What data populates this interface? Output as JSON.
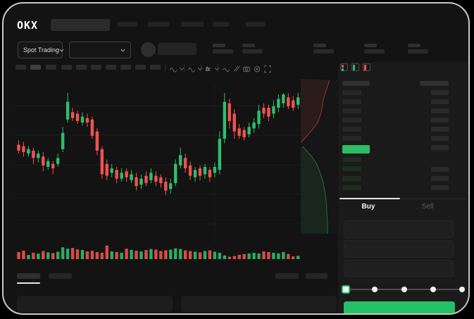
{
  "app": {
    "logo_text": "OKX"
  },
  "colors": {
    "up_green": "#2EBD6E",
    "down_red": "#F0524F",
    "price_bar_green": "#2EBD64",
    "buy_button_green": "#26C166",
    "screen_bg": "#131313",
    "panel_bg": "#1a1a1a",
    "skeleton": "#262626",
    "tab_indicator": "#FFFFFF"
  },
  "header": {
    "nav_placeholder_count": 5,
    "search_placeholder": ""
  },
  "toolbar": {
    "market_selector_label": "Spot Trading",
    "chart_toolbar_button_count": 10,
    "chart_toolbar_active_index": 1,
    "stat_group_count": 5,
    "icons": [
      "wave-icon",
      "chevron-down-icon",
      "wave-icon",
      "chevron-down-icon",
      "fx-icon",
      "chevron-down-icon",
      "indicator-wave-icon",
      "compare-slashes-icon",
      "camera-icon",
      "settings-circle-icon",
      "fullscreen-icon"
    ]
  },
  "orderbook": {
    "layout_icons": [
      "layout-both-icon",
      "layout-bids-icon",
      "layout-asks-icon"
    ],
    "ask_row_count": 6,
    "bid_row_count": 4,
    "right_top_row_count": 7,
    "right_bottom_row_count": 3,
    "has_price_highlight": true
  },
  "trade_panel": {
    "tabs": [
      {
        "label": "Buy",
        "active": true
      },
      {
        "label": "Sell",
        "active": false
      }
    ],
    "input_placeholder_count": 3,
    "slider": {
      "stops": 5,
      "active_index": 0
    }
  },
  "bottom_bar": {
    "left_tab_count": 2,
    "active_left_tab": 0,
    "right_button_count": 2,
    "panel_count": 2
  },
  "chart_data": {
    "type": "candlestick",
    "title": "",
    "xlabel": "",
    "ylabel": "",
    "note": "OHLC normalized to 0-100 relative price scale (no numeric axis labels visible in UI)",
    "grid": true,
    "candles": [
      [
        65,
        68,
        59,
        61
      ],
      [
        64,
        67,
        57,
        60
      ],
      [
        59,
        64,
        57,
        62
      ],
      [
        61,
        63,
        52,
        56
      ],
      [
        56,
        61,
        53,
        59
      ],
      [
        57,
        60,
        47,
        51
      ],
      [
        50,
        56,
        48,
        54
      ],
      [
        52,
        54,
        45,
        49
      ],
      [
        52,
        59,
        50,
        56
      ],
      [
        62,
        77,
        60,
        73
      ],
      [
        82,
        100,
        80,
        94
      ],
      [
        87,
        90,
        81,
        83
      ],
      [
        86,
        88,
        79,
        81
      ],
      [
        80,
        87,
        78,
        84
      ],
      [
        83,
        86,
        77,
        80
      ],
      [
        82,
        84,
        69,
        71
      ],
      [
        74,
        76,
        58,
        61
      ],
      [
        62,
        64,
        42,
        45
      ],
      [
        52,
        55,
        41,
        44
      ],
      [
        46,
        52,
        43,
        49
      ],
      [
        48,
        50,
        39,
        42
      ],
      [
        42,
        49,
        40,
        46
      ],
      [
        47,
        49,
        40,
        43
      ],
      [
        41,
        48,
        39,
        45
      ],
      [
        43,
        46,
        34,
        37
      ],
      [
        38,
        45,
        35,
        42
      ],
      [
        44,
        47,
        37,
        39
      ],
      [
        41,
        49,
        39,
        46
      ],
      [
        44,
        47,
        37,
        40
      ],
      [
        43,
        45,
        36,
        39
      ],
      [
        40,
        43,
        31,
        34
      ],
      [
        35,
        42,
        32,
        39
      ],
      [
        39,
        55,
        37,
        52
      ],
      [
        51,
        63,
        49,
        58
      ],
      [
        56,
        59,
        46,
        49
      ],
      [
        51,
        54,
        41,
        44
      ],
      [
        43,
        50,
        40,
        48
      ],
      [
        49,
        51,
        41,
        44
      ],
      [
        45,
        52,
        42,
        50
      ],
      [
        48,
        50,
        40,
        43
      ],
      [
        46,
        53,
        43,
        50
      ],
      [
        48,
        74,
        45,
        69
      ],
      [
        69,
        100,
        66,
        94
      ],
      [
        93,
        96,
        76,
        81
      ],
      [
        86,
        89,
        69,
        74
      ],
      [
        76,
        79,
        69,
        71
      ],
      [
        75,
        77,
        68,
        70
      ],
      [
        72,
        80,
        70,
        77
      ],
      [
        76,
        83,
        73,
        80
      ],
      [
        79,
        92,
        76,
        88
      ],
      [
        90,
        93,
        83,
        86
      ],
      [
        90,
        92,
        81,
        84
      ],
      [
        86,
        95,
        83,
        91
      ],
      [
        90,
        99,
        87,
        96
      ],
      [
        93,
        100,
        90,
        99
      ],
      [
        97,
        100,
        89,
        91
      ],
      [
        95,
        98,
        88,
        90
      ],
      [
        92,
        100,
        89,
        97
      ]
    ],
    "volumes": [
      42,
      50,
      25,
      38,
      33,
      48,
      40,
      36,
      44,
      70,
      62,
      66,
      58,
      54,
      46,
      50,
      42,
      38,
      80,
      46,
      42,
      38,
      62,
      55,
      50,
      46,
      54,
      60,
      56,
      48,
      52,
      56,
      64,
      60,
      52,
      48,
      44,
      40,
      48,
      52,
      44,
      38,
      22,
      14,
      18,
      26,
      30,
      34,
      38,
      34,
      46,
      42,
      38,
      34,
      42,
      30,
      16,
      20
    ],
    "depth_chart": {
      "type": "area",
      "orientation": "vertical",
      "ask_points": [
        [
          0,
          0
        ],
        [
          41,
          2
        ],
        [
          36,
          16
        ],
        [
          32,
          30
        ],
        [
          29,
          48
        ],
        [
          24,
          62
        ],
        [
          15,
          74
        ],
        [
          6,
          84
        ],
        [
          1,
          90
        ],
        [
          0,
          90
        ]
      ],
      "bid_points": [
        [
          0,
          96
        ],
        [
          3,
          96
        ],
        [
          10,
          104
        ],
        [
          17,
          112
        ],
        [
          23,
          122
        ],
        [
          27,
          132
        ],
        [
          31,
          144
        ],
        [
          34,
          158
        ],
        [
          36,
          172
        ],
        [
          37,
          188
        ],
        [
          38,
          204
        ],
        [
          38,
          220
        ],
        [
          0,
          220
        ]
      ]
    }
  }
}
